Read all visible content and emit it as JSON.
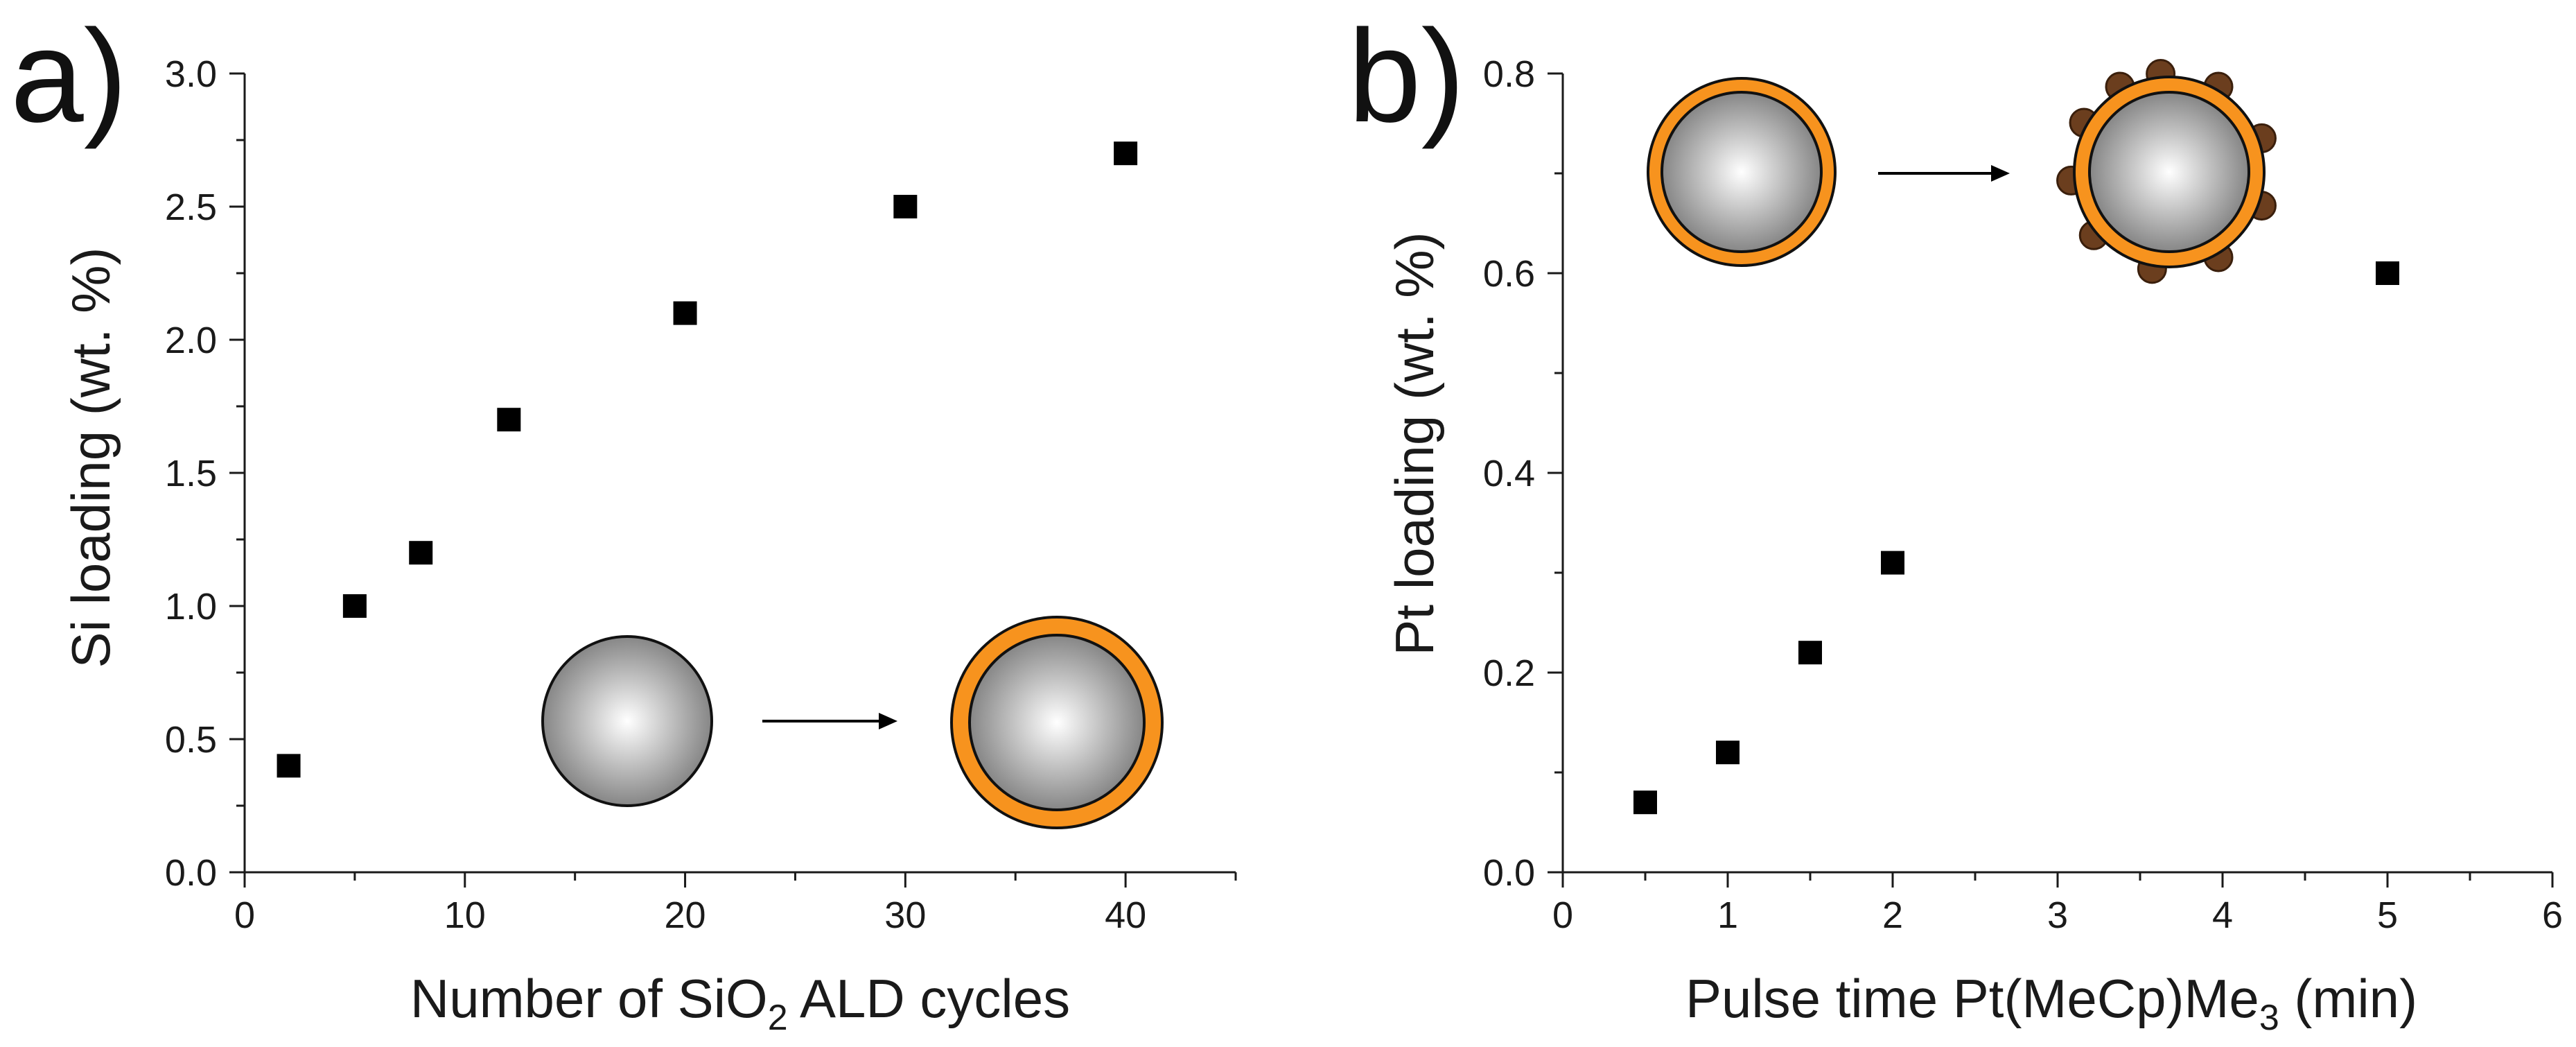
{
  "chart_data": [
    {
      "panel": "a)",
      "type": "scatter",
      "title": "",
      "xlabel": "Number of  SiO",
      "xlabel_sub": "2",
      "xlabel_after": " ALD cycles",
      "ylabel": "Si loading  (wt. %)",
      "xlim": [
        0,
        45
      ],
      "ylim": [
        0.0,
        3.0
      ],
      "xticks": [
        "0",
        "10",
        "20",
        "30",
        "40"
      ],
      "xtick_values": [
        0,
        10,
        20,
        30,
        40
      ],
      "yticks": [
        "0.0",
        "0.5",
        "1.0",
        "1.5",
        "2.0",
        "2.5",
        "3.0"
      ],
      "ytick_values": [
        0.0,
        0.5,
        1.0,
        1.5,
        2.0,
        2.5,
        3.0
      ],
      "x": [
        2,
        5,
        8,
        12,
        20,
        30,
        40
      ],
      "y": [
        0.4,
        1.0,
        1.2,
        1.7,
        2.1,
        2.5,
        2.7
      ],
      "inset": "bare sphere → sphere with orange SiO2 shell"
    },
    {
      "panel": "b)",
      "type": "scatter",
      "title": "",
      "xlabel": "Pulse time Pt(MeCp)Me",
      "xlabel_sub": "3",
      "xlabel_after": " (min)",
      "ylabel": "Pt loading (wt. %)",
      "xlim": [
        0,
        6
      ],
      "ylim": [
        0.0,
        0.8
      ],
      "xticks": [
        "0",
        "1",
        "2",
        "3",
        "4",
        "5",
        "6"
      ],
      "xtick_values": [
        0,
        1,
        2,
        3,
        4,
        5,
        6
      ],
      "yticks": [
        "0.0",
        "0.2",
        "0.4",
        "0.6",
        "0.8"
      ],
      "ytick_values": [
        0.0,
        0.2,
        0.4,
        0.6,
        0.8
      ],
      "x": [
        0.5,
        1.0,
        1.5,
        2.0,
        5.0
      ],
      "y": [
        0.07,
        0.12,
        0.22,
        0.31,
        0.6
      ],
      "inset": "shelled sphere → shelled sphere decorated with Pt particles"
    }
  ],
  "colors": {
    "shell": "#f7931e",
    "particle": "#6b3e1e",
    "sphere_center": "#ffffff",
    "sphere_edge": "#7a7a7a",
    "marker": "#000000"
  }
}
